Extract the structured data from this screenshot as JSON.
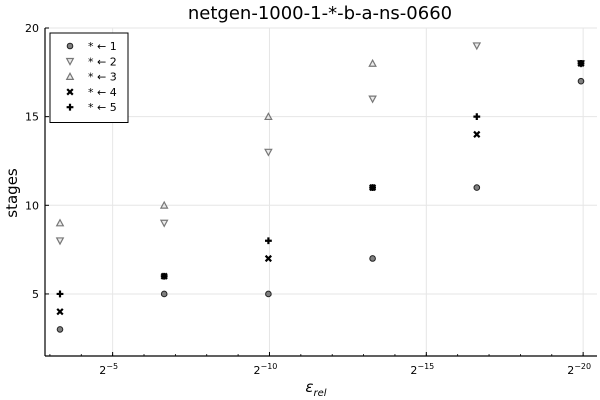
{
  "chart_data": {
    "type": "scatter",
    "title": "netgen-1000-1-*-b-a-ns-0660",
    "xlabel": "ε",
    "xlabel_sub": "rel",
    "ylabel": "stages",
    "x_scale": "log2 (reversed)",
    "x_tick_labels": [
      {
        "base": "2",
        "exp": "−5",
        "value": 0.03125
      },
      {
        "base": "2",
        "exp": "−10",
        "value": 0.0009765625
      },
      {
        "base": "2",
        "exp": "−15",
        "value": 3.0517578125e-05
      },
      {
        "base": "2",
        "exp": "−20",
        "value": 9.5367431640625e-07
      }
    ],
    "y_ticks": [
      5,
      10,
      15,
      20
    ],
    "ylim": [
      1.5,
      20
    ],
    "grid": true,
    "legend_position": "top-left",
    "x": [
      0.1,
      0.01,
      0.001,
      0.0001,
      1e-05,
      1e-06
    ],
    "series": [
      {
        "name": "* ← 1",
        "marker": "circle",
        "color": "#555555",
        "values": [
          3,
          5,
          5,
          7,
          11,
          17
        ]
      },
      {
        "name": "* ← 2",
        "marker": "triangle-down",
        "color": "#777777",
        "values": [
          8,
          9,
          13,
          16,
          19,
          18
        ]
      },
      {
        "name": "* ← 3",
        "marker": "triangle-up",
        "color": "#777777",
        "values": [
          9,
          10,
          15,
          18,
          null,
          null
        ]
      },
      {
        "name": "* ← 4",
        "marker": "x",
        "color": "#000000",
        "values": [
          4,
          6,
          7,
          11,
          14,
          18
        ]
      },
      {
        "name": "* ← 5",
        "marker": "plus",
        "color": "#000000",
        "values": [
          5,
          6,
          8,
          11,
          15,
          18
        ]
      }
    ]
  }
}
